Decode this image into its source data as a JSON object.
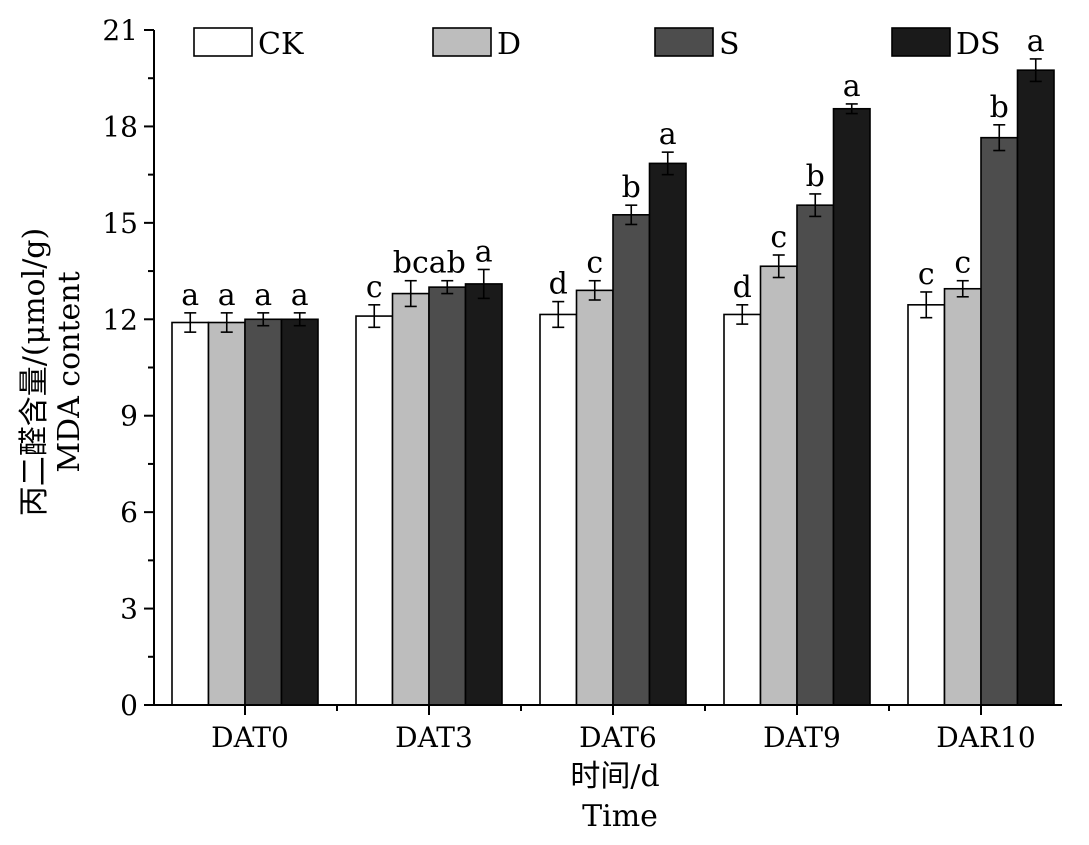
{
  "chart_data": {
    "type": "bar",
    "categories": [
      "DAT0",
      "DAT3",
      "DAT6",
      "DAT9",
      "DAR10"
    ],
    "series": [
      {
        "name": "CK",
        "color": "#ffffff",
        "values": [
          11.9,
          12.1,
          12.15,
          12.15,
          12.45
        ],
        "errors": [
          0.3,
          0.35,
          0.4,
          0.3,
          0.4
        ],
        "labels": [
          "a",
          "c",
          "d",
          "d",
          "c"
        ]
      },
      {
        "name": "D",
        "color": "#bdbdbd",
        "values": [
          11.9,
          12.8,
          12.9,
          13.65,
          12.95
        ],
        "errors": [
          0.3,
          0.4,
          0.3,
          0.35,
          0.25
        ],
        "labels": [
          "a",
          "bc",
          "c",
          "c",
          "c"
        ]
      },
      {
        "name": "S",
        "color": "#4d4d4d",
        "values": [
          12.0,
          13.0,
          15.25,
          15.55,
          17.65
        ],
        "errors": [
          0.2,
          0.2,
          0.3,
          0.35,
          0.4
        ],
        "labels": [
          "a",
          "ab",
          "b",
          "b",
          "b"
        ]
      },
      {
        "name": "DS",
        "color": "#1a1a1a",
        "values": [
          12.0,
          13.1,
          16.85,
          18.55,
          19.75
        ],
        "errors": [
          0.2,
          0.45,
          0.35,
          0.15,
          0.35
        ],
        "labels": [
          "a",
          "a",
          "a",
          "a",
          "a"
        ]
      }
    ],
    "ylim": [
      0,
      21
    ],
    "yticks": [
      "0",
      "3",
      "6",
      "9",
      "12",
      "15",
      "18",
      "21"
    ],
    "ylabel_cn": "丙二醛含量/(μmol/g)",
    "ylabel_en": "MDA content",
    "xlabel_cn": "时间/d",
    "xlabel_en": "Time",
    "legend_position": "top",
    "grid": false
  }
}
